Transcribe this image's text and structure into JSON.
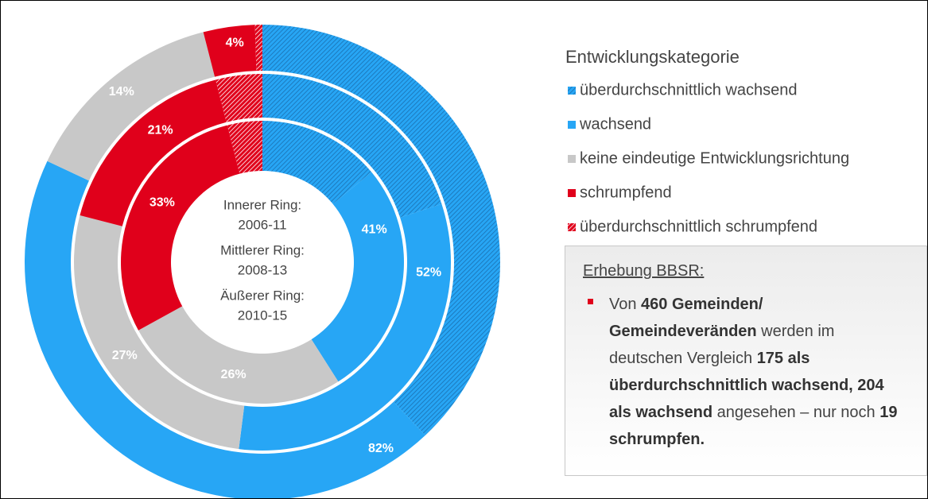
{
  "chart_data": {
    "type": "multi_donut",
    "legend_title": "Entwicklungskategorie",
    "categories": [
      {
        "name": "überdurchschnittlich wachsend",
        "color": "#27a6f5",
        "hatched": true,
        "pattern_color": "#1a6fb0"
      },
      {
        "name": "wachsend",
        "color": "#27a6f5",
        "hatched": false
      },
      {
        "name": "keine eindeutige Entwicklungsrichtung",
        "color": "#c8c8c8",
        "hatched": false
      },
      {
        "name": "schrumpfend",
        "color": "#e0001b",
        "hatched": false
      },
      {
        "name": "überdurchschnittlich schrumpfend",
        "color": "#e0001b",
        "hatched": true,
        "pattern_color": "#ffffff"
      }
    ],
    "rings": [
      {
        "name": "Innerer Ring:",
        "period": "2006-11",
        "values": [
          14,
          27,
          26,
          29,
          4
        ],
        "groups": [
          {
            "value": 41,
            "label": "41%"
          },
          {
            "value": 26,
            "label": "26%"
          },
          {
            "value": 33,
            "label": "33%"
          }
        ]
      },
      {
        "name": "Mittlerer Ring:",
        "period": "2008-13",
        "values": [
          20,
          32,
          27,
          17,
          4
        ],
        "groups": [
          {
            "value": 52,
            "label": "52%"
          },
          {
            "value": 27,
            "label": "27%"
          },
          {
            "value": 21,
            "label": "21%"
          }
        ]
      },
      {
        "name": "Äußerer Ring:",
        "period": "2010-15",
        "values": [
          38,
          44,
          14,
          3.5,
          0.5
        ],
        "groups": [
          {
            "value": 82,
            "label": "82%"
          },
          {
            "value": 14,
            "label": "14%"
          },
          {
            "value": 4,
            "label": "4%"
          }
        ]
      }
    ]
  },
  "info_box": {
    "title": "Erhebung BBSR:",
    "runs": [
      {
        "text": "Von ",
        "bold": false
      },
      {
        "text": "460 Gemeinden/ Gemeindeveränden",
        "bold": true
      },
      {
        "text": " werden im deutschen Vergleich ",
        "bold": false
      },
      {
        "text": "175 als überdurchschnittlich wachsend, 204 als wachsend",
        "bold": true
      },
      {
        "text": " angesehen – nur noch ",
        "bold": false
      },
      {
        "text": "19 schrumpfen.",
        "bold": true
      }
    ]
  }
}
